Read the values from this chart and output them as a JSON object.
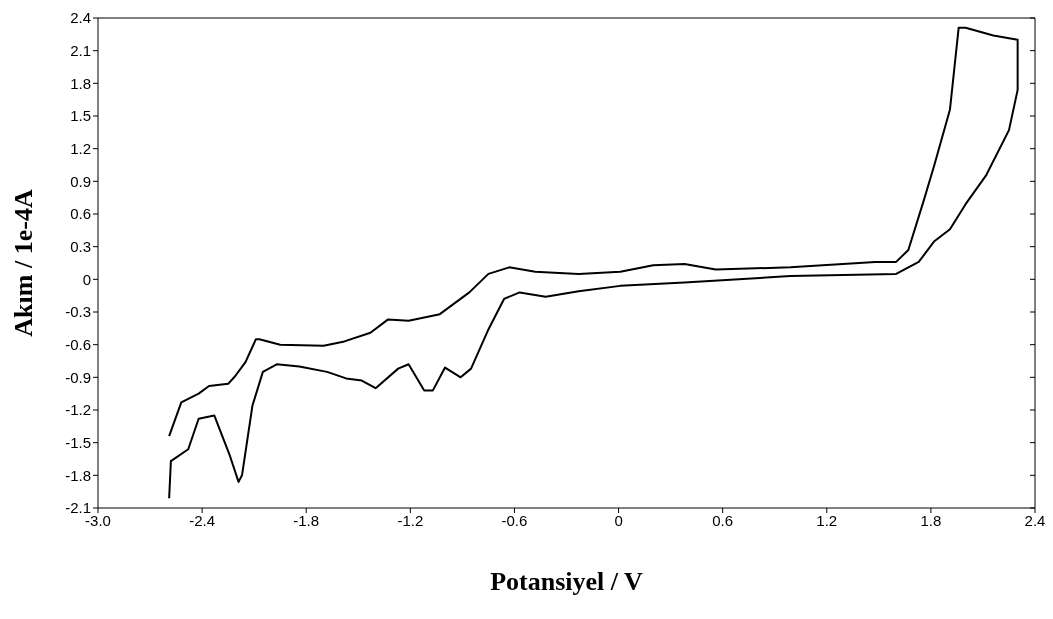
{
  "chart_data": {
    "type": "line",
    "xlabel": "Potansiyel / V",
    "ylabel": "Akım / 1e-4A",
    "xlim": [
      -3.0,
      2.4
    ],
    "xticks": [
      {
        "value": -3.0,
        "label": "-3.0"
      },
      -2.4,
      -1.8,
      -1.2,
      -0.6,
      0,
      0.6,
      1.2,
      1.8,
      2.4
    ],
    "ylim": [
      -2.1,
      2.4
    ],
    "yticks": [
      -2.1,
      -1.8,
      -1.5,
      -1.2,
      -0.9,
      -0.6,
      -0.3,
      0,
      0.3,
      0.6,
      0.9,
      1.2,
      1.5,
      1.8,
      2.1,
      2.4
    ],
    "grid": false,
    "marker": "none",
    "line_style": "solid",
    "series": [
      {
        "color": "#000000",
        "x": [
          -2.59,
          -2.52,
          -2.42,
          -2.36,
          -2.25,
          -2.21,
          -2.15,
          -2.09,
          -2.07,
          -1.95,
          -1.7,
          -1.58,
          -1.43,
          -1.33,
          -1.21,
          -1.03,
          -0.86,
          -0.75,
          -0.63,
          -0.48,
          -0.23,
          0.01,
          0.2,
          0.38,
          0.56,
          0.99,
          1.48,
          1.6,
          1.67,
          1.76,
          1.82,
          1.91,
          1.96,
          2.0,
          2.16,
          2.3,
          2.3,
          2.25,
          2.12,
          2.0,
          1.91,
          1.82,
          1.73,
          1.6,
          0.99,
          0.38,
          0.01,
          -0.23,
          -0.42,
          -0.57,
          -0.66,
          -0.75,
          -0.85,
          -0.91,
          -1.0,
          -1.07,
          -1.12,
          -1.21,
          -1.27,
          -1.4,
          -1.48,
          -1.57,
          -1.68,
          -1.84,
          -1.97,
          -2.05,
          -2.11,
          -2.17,
          -2.19,
          -2.24,
          -2.33,
          -2.42,
          -2.48,
          -2.58,
          -2.59
        ],
        "values": [
          -1.44,
          -1.13,
          -1.05,
          -0.98,
          -0.96,
          -0.89,
          -0.76,
          -0.55,
          -0.55,
          -0.6,
          -0.61,
          -0.57,
          -0.49,
          -0.37,
          -0.38,
          -0.32,
          -0.12,
          0.05,
          0.11,
          0.07,
          0.05,
          0.07,
          0.13,
          0.14,
          0.09,
          0.11,
          0.16,
          0.16,
          0.27,
          0.73,
          1.05,
          1.56,
          2.31,
          2.31,
          2.24,
          2.2,
          1.74,
          1.37,
          0.96,
          0.69,
          0.46,
          0.35,
          0.16,
          0.05,
          0.03,
          -0.03,
          -0.06,
          -0.11,
          -0.16,
          -0.12,
          -0.18,
          -0.46,
          -0.82,
          -0.9,
          -0.81,
          -1.02,
          -1.02,
          -0.78,
          -0.82,
          -1.0,
          -0.93,
          -0.91,
          -0.85,
          -0.8,
          -0.78,
          -0.85,
          -1.16,
          -1.8,
          -1.86,
          -1.62,
          -1.25,
          -1.28,
          -1.56,
          -1.67,
          -2.01
        ]
      }
    ]
  }
}
